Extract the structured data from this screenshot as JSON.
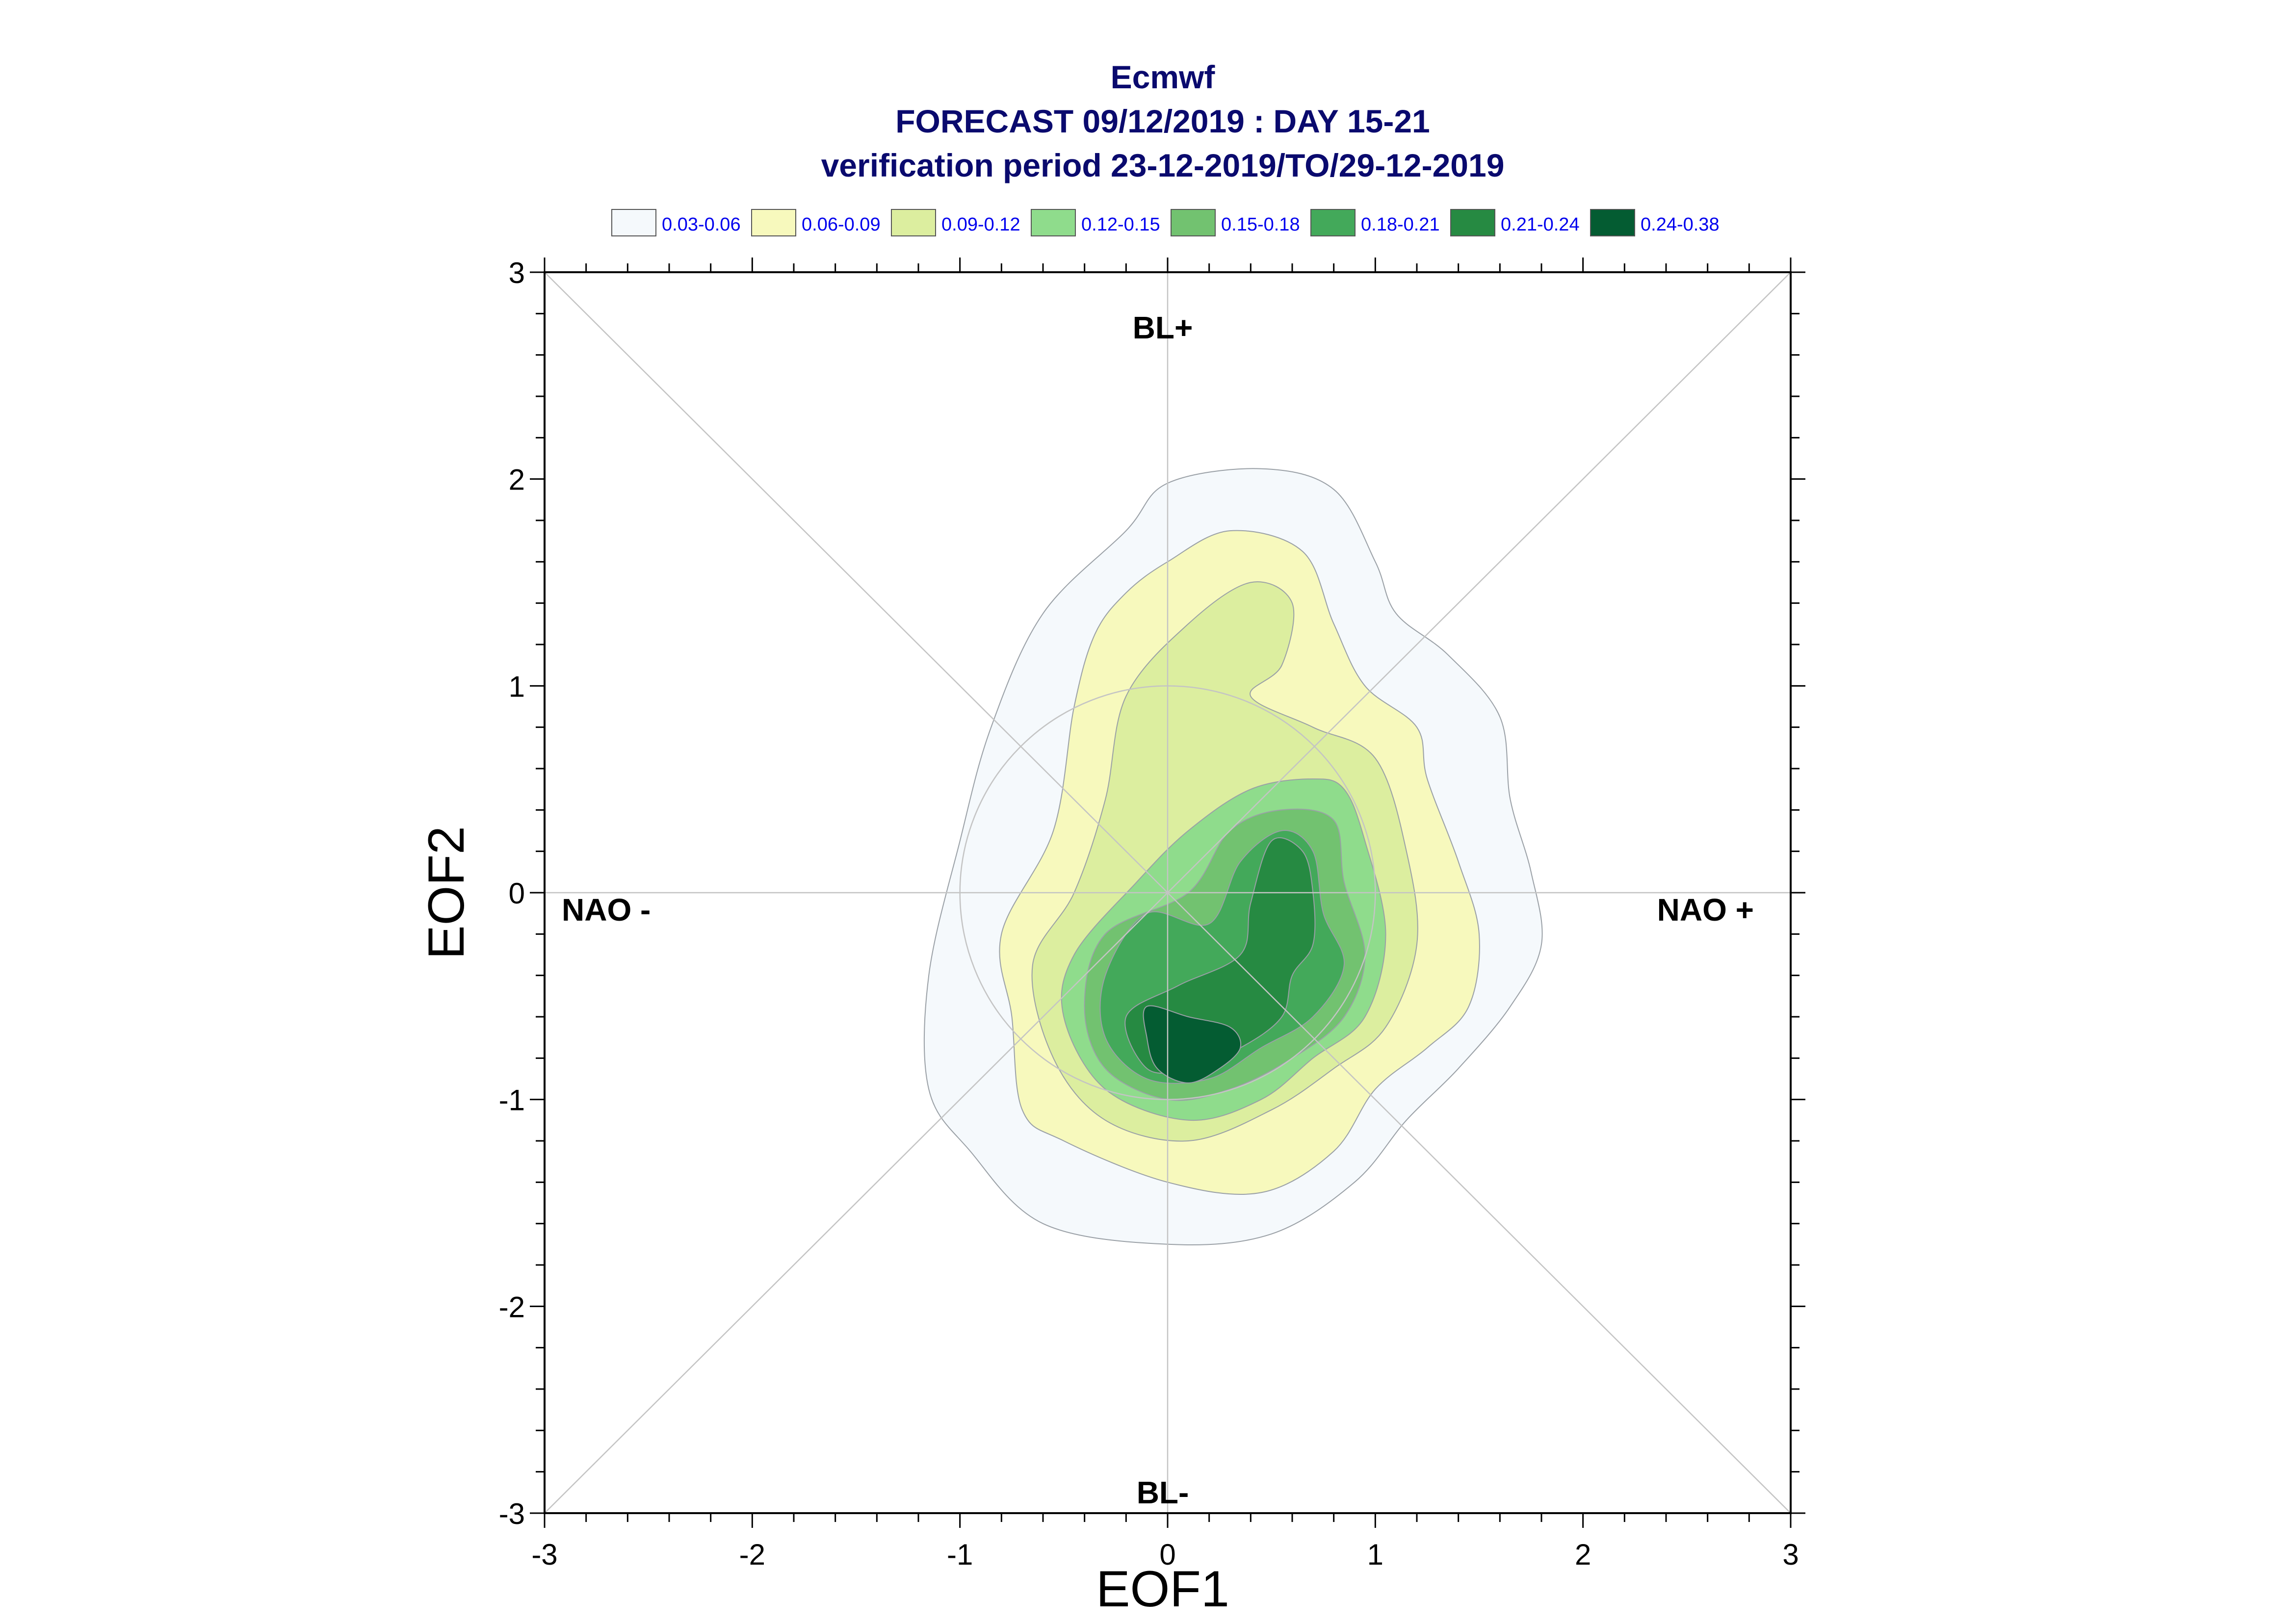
{
  "chart_data": {
    "type": "contour",
    "title_lines": [
      "Ecmwf",
      "FORECAST 09/12/2019 : DAY 15-21",
      "verification period 23-12-2019/TO/29-12-2019"
    ],
    "xlabel": "EOF1",
    "ylabel": "EOF2",
    "xlim": [
      -3,
      3
    ],
    "ylim": [
      -3,
      3
    ],
    "xticks": [
      "-3",
      "-2",
      "-1",
      "0",
      "1",
      "2",
      "3"
    ],
    "yticks": [
      "-3",
      "-2",
      "-1",
      "0",
      "1",
      "2",
      "3"
    ],
    "regime_labels": {
      "top": "BL+",
      "bottom": "BL-",
      "left": "NAO -",
      "right": "NAO +"
    },
    "reference_circle_radius": 1,
    "legend": [
      {
        "label": "0.03-0.06",
        "color": "#f5f9fc"
      },
      {
        "label": "0.06-0.09",
        "color": "#f7f9bd"
      },
      {
        "label": "0.09-0.12",
        "color": "#dcee9f"
      },
      {
        "label": "0.12-0.15",
        "color": "#8fdc8c"
      },
      {
        "label": "0.15-0.18",
        "color": "#72c270"
      },
      {
        "label": "0.18-0.21",
        "color": "#43a95a"
      },
      {
        "label": "0.21-0.24",
        "color": "#268a42"
      },
      {
        "label": "0.24-0.38",
        "color": "#045c32"
      }
    ],
    "contour_levels": [
      {
        "level": "0.03",
        "points": [
          [
            -0.2,
            1.75
          ],
          [
            0.0,
            1.98
          ],
          [
            0.45,
            2.05
          ],
          [
            0.8,
            1.95
          ],
          [
            1.0,
            1.6
          ],
          [
            1.1,
            1.35
          ],
          [
            1.35,
            1.15
          ],
          [
            1.6,
            0.85
          ],
          [
            1.65,
            0.45
          ],
          [
            1.75,
            0.1
          ],
          [
            1.8,
            -0.25
          ],
          [
            1.65,
            -0.55
          ],
          [
            1.4,
            -0.85
          ],
          [
            1.15,
            -1.1
          ],
          [
            0.9,
            -1.4
          ],
          [
            0.5,
            -1.65
          ],
          [
            0.0,
            -1.7
          ],
          [
            -0.6,
            -1.6
          ],
          [
            -0.95,
            -1.25
          ],
          [
            -1.15,
            -0.95
          ],
          [
            -1.15,
            -0.4
          ],
          [
            -1.0,
            0.25
          ],
          [
            -0.85,
            0.8
          ],
          [
            -0.6,
            1.35
          ]
        ]
      },
      {
        "level": "0.06",
        "points": [
          [
            -0.35,
            1.25
          ],
          [
            -0.2,
            1.45
          ],
          [
            0.0,
            1.6
          ],
          [
            0.3,
            1.75
          ],
          [
            0.65,
            1.65
          ],
          [
            0.8,
            1.3
          ],
          [
            0.95,
            1.0
          ],
          [
            1.2,
            0.8
          ],
          [
            1.25,
            0.55
          ],
          [
            1.4,
            0.15
          ],
          [
            1.5,
            -0.2
          ],
          [
            1.45,
            -0.55
          ],
          [
            1.25,
            -0.75
          ],
          [
            1.0,
            -0.95
          ],
          [
            0.8,
            -1.25
          ],
          [
            0.45,
            -1.45
          ],
          [
            0.0,
            -1.4
          ],
          [
            -0.5,
            -1.2
          ],
          [
            -0.7,
            -1.05
          ],
          [
            -0.75,
            -0.6
          ],
          [
            -0.8,
            -0.2
          ],
          [
            -0.55,
            0.3
          ],
          [
            -0.45,
            0.9
          ]
        ]
      },
      {
        "level": "0.09",
        "points": [
          [
            -0.2,
            0.95
          ],
          [
            0.1,
            1.3
          ],
          [
            0.4,
            1.5
          ],
          [
            0.6,
            1.4
          ],
          [
            0.55,
            1.1
          ],
          [
            0.4,
            0.95
          ],
          [
            0.7,
            0.8
          ],
          [
            1.0,
            0.65
          ],
          [
            1.15,
            0.2
          ],
          [
            1.2,
            -0.25
          ],
          [
            1.05,
            -0.65
          ],
          [
            0.8,
            -0.85
          ],
          [
            0.5,
            -1.05
          ],
          [
            0.1,
            -1.2
          ],
          [
            -0.3,
            -1.1
          ],
          [
            -0.55,
            -0.8
          ],
          [
            -0.65,
            -0.35
          ],
          [
            -0.45,
            0.0
          ],
          [
            -0.3,
            0.45
          ]
        ]
      },
      {
        "level": "0.12",
        "points": [
          [
            -0.15,
            0.05
          ],
          [
            0.1,
            0.3
          ],
          [
            0.4,
            0.5
          ],
          [
            0.7,
            0.55
          ],
          [
            0.85,
            0.5
          ],
          [
            0.95,
            0.25
          ],
          [
            1.05,
            -0.2
          ],
          [
            0.95,
            -0.6
          ],
          [
            0.7,
            -0.8
          ],
          [
            0.45,
            -1.0
          ],
          [
            0.1,
            -1.1
          ],
          [
            -0.3,
            -0.95
          ],
          [
            -0.5,
            -0.6
          ],
          [
            -0.45,
            -0.3
          ]
        ]
      },
      {
        "level": "0.15",
        "points": [
          [
            0.1,
            0.0
          ],
          [
            0.3,
            0.3
          ],
          [
            0.55,
            0.4
          ],
          [
            0.8,
            0.35
          ],
          [
            0.85,
            0.05
          ],
          [
            0.95,
            -0.3
          ],
          [
            0.85,
            -0.6
          ],
          [
            0.6,
            -0.8
          ],
          [
            0.3,
            -0.95
          ],
          [
            0.0,
            -1.0
          ],
          [
            -0.3,
            -0.85
          ],
          [
            -0.4,
            -0.55
          ],
          [
            -0.3,
            -0.2
          ]
        ]
      },
      {
        "level": "0.18",
        "points": [
          [
            0.2,
            -0.15
          ],
          [
            0.35,
            0.15
          ],
          [
            0.55,
            0.3
          ],
          [
            0.7,
            0.2
          ],
          [
            0.75,
            -0.1
          ],
          [
            0.85,
            -0.35
          ],
          [
            0.7,
            -0.6
          ],
          [
            0.45,
            -0.75
          ],
          [
            0.2,
            -0.9
          ],
          [
            -0.1,
            -0.9
          ],
          [
            -0.3,
            -0.7
          ],
          [
            -0.3,
            -0.4
          ],
          [
            -0.1,
            -0.1
          ]
        ]
      },
      {
        "level": "0.21",
        "points": [
          [
            0.4,
            -0.05
          ],
          [
            0.5,
            0.25
          ],
          [
            0.65,
            0.2
          ],
          [
            0.7,
            0.0
          ],
          [
            0.7,
            -0.25
          ],
          [
            0.6,
            -0.4
          ],
          [
            0.55,
            -0.6
          ],
          [
            0.35,
            -0.75
          ],
          [
            0.1,
            -0.85
          ],
          [
            -0.1,
            -0.85
          ],
          [
            -0.2,
            -0.6
          ],
          [
            0.05,
            -0.45
          ],
          [
            0.35,
            -0.3
          ]
        ]
      },
      {
        "level": "0.24",
        "points": [
          [
            -0.1,
            -0.55
          ],
          [
            0.1,
            -0.6
          ],
          [
            0.3,
            -0.65
          ],
          [
            0.35,
            -0.75
          ],
          [
            0.25,
            -0.85
          ],
          [
            0.1,
            -0.92
          ],
          [
            -0.05,
            -0.85
          ],
          [
            -0.1,
            -0.7
          ]
        ]
      }
    ]
  }
}
